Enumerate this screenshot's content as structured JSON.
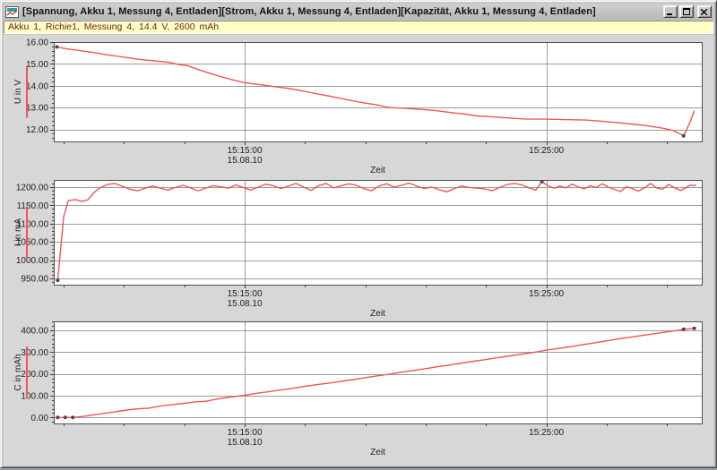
{
  "window": {
    "title": "[Spannung, Akku 1, Messung 4, Entladen][Strom, Akku 1, Messung 4, Entladen][Kapazität, Akku 1, Messung 4, Entladen]",
    "icon": "chart-document-icon",
    "buttons": [
      {
        "id": "minimize",
        "icon": "minimize-icon"
      },
      {
        "id": "maximize",
        "icon": "maximize-icon"
      },
      {
        "id": "close",
        "icon": "close-icon"
      }
    ]
  },
  "info_bar": {
    "text": "Akku 1, Richie1, Messung 4, 14.4 V, 2600 mAh"
  },
  "colors": {
    "accent_red": "#d94040",
    "line": "#ee5555",
    "grid": "#9b9b9b",
    "plot_border": "#4f4f4f",
    "plot_bg": "#ffffff",
    "marker": "#4a4a4a",
    "info_bg": "#ffffc4",
    "info_text": "#6e2020",
    "content_bg": "#d7d7d7"
  },
  "chart_data": [
    {
      "id": "spannung",
      "type": "line",
      "title": "Spannung, Akku 1, Messung 4, Entladen",
      "ylabel": "U in V",
      "xlabel": "Zeit",
      "x_unit": "minutes after 15:00:00 on 15.08.10",
      "xlim": [
        8.67,
        30.15
      ],
      "ylim": [
        11.45,
        16.0
      ],
      "yticks": [
        12,
        13,
        14,
        15,
        16
      ],
      "ytick_labels": [
        "12.00",
        "13.00",
        "14.00",
        "15.00",
        "16.00"
      ],
      "xticks": [
        {
          "t": 15,
          "label": "15:15:00",
          "date": "15.08.10"
        },
        {
          "t": 25,
          "label": "15:25:00"
        }
      ],
      "xminor": [
        9,
        11,
        13,
        17,
        19,
        21,
        23,
        27,
        29
      ],
      "legend_color": "#ee5555",
      "series": [
        {
          "name": "U",
          "points": [
            [
              8.77,
              15.78
            ],
            [
              9.1,
              15.69
            ],
            [
              9.5,
              15.62
            ],
            [
              10.0,
              15.52
            ],
            [
              10.5,
              15.4
            ],
            [
              11.0,
              15.31
            ],
            [
              11.5,
              15.21
            ],
            [
              12.0,
              15.14
            ],
            [
              12.5,
              15.07
            ],
            [
              12.8,
              14.97
            ],
            [
              13.1,
              14.92
            ],
            [
              13.5,
              14.72
            ],
            [
              14.1,
              14.46
            ],
            [
              14.6,
              14.27
            ],
            [
              15.0,
              14.14
            ],
            [
              15.5,
              14.05
            ],
            [
              16.0,
              13.96
            ],
            [
              16.5,
              13.87
            ],
            [
              17.0,
              13.74
            ],
            [
              17.4,
              13.63
            ],
            [
              17.9,
              13.5
            ],
            [
              18.4,
              13.36
            ],
            [
              18.9,
              13.23
            ],
            [
              19.4,
              13.12
            ],
            [
              19.8,
              13.0
            ],
            [
              20.3,
              12.97
            ],
            [
              20.8,
              12.92
            ],
            [
              21.3,
              12.87
            ],
            [
              21.8,
              12.78
            ],
            [
              22.3,
              12.7
            ],
            [
              22.7,
              12.62
            ],
            [
              23.3,
              12.57
            ],
            [
              23.8,
              12.52
            ],
            [
              24.3,
              12.48
            ],
            [
              25.0,
              12.47
            ],
            [
              25.6,
              12.45
            ],
            [
              26.3,
              12.43
            ],
            [
              26.8,
              12.38
            ],
            [
              27.3,
              12.32
            ],
            [
              27.8,
              12.25
            ],
            [
              28.3,
              12.18
            ],
            [
              28.9,
              12.05
            ],
            [
              29.2,
              11.95
            ],
            [
              29.45,
              11.78
            ],
            [
              29.55,
              11.71
            ],
            [
              29.75,
              12.3
            ],
            [
              29.9,
              12.84
            ]
          ]
        }
      ],
      "markers": [
        [
          8.77,
          15.78
        ],
        [
          29.55,
          11.71
        ]
      ]
    },
    {
      "id": "strom",
      "type": "line",
      "title": "Strom, Akku 1, Messung 4, Entladen",
      "ylabel": "I in mA",
      "xlabel": "Zeit",
      "x_unit": "minutes after 15:00:00 on 15.08.10",
      "xlim": [
        8.67,
        30.15
      ],
      "ylim": [
        933,
        1219.6
      ],
      "yticks": [
        950,
        1000,
        1050,
        1100,
        1150,
        1200
      ],
      "ytick_labels": [
        "950.00",
        "1000.00",
        "1050.00",
        "1100.00",
        "1150.00",
        "1200.00"
      ],
      "xticks": [
        {
          "t": 15,
          "label": "15:15:00",
          "date": "15.08.10"
        },
        {
          "t": 25,
          "label": "15:25:00"
        }
      ],
      "xminor": [
        9,
        11,
        13,
        17,
        19,
        21,
        23,
        27,
        29
      ],
      "legend_color": "#ee5555",
      "series": [
        {
          "name": "I",
          "points": [
            [
              8.8,
              945
            ],
            [
              9.0,
              1120
            ],
            [
              9.15,
              1163
            ],
            [
              9.4,
              1166
            ],
            [
              9.6,
              1161
            ],
            [
              9.8,
              1165
            ],
            [
              10.0,
              1185
            ],
            [
              10.2,
              1198
            ],
            [
              10.45,
              1207
            ],
            [
              10.7,
              1210
            ],
            [
              10.95,
              1202
            ],
            [
              11.2,
              1194
            ],
            [
              11.45,
              1190
            ],
            [
              11.7,
              1197
            ],
            [
              11.95,
              1203
            ],
            [
              12.2,
              1197
            ],
            [
              12.45,
              1192
            ],
            [
              12.7,
              1199
            ],
            [
              12.95,
              1205
            ],
            [
              13.2,
              1198
            ],
            [
              13.45,
              1190
            ],
            [
              13.7,
              1197
            ],
            [
              13.95,
              1204
            ],
            [
              14.2,
              1201
            ],
            [
              14.45,
              1197
            ],
            [
              14.7,
              1206
            ],
            [
              14.95,
              1199
            ],
            [
              15.2,
              1192
            ],
            [
              15.45,
              1200
            ],
            [
              15.7,
              1208
            ],
            [
              15.95,
              1204
            ],
            [
              16.2,
              1196
            ],
            [
              16.45,
              1203
            ],
            [
              16.7,
              1210
            ],
            [
              16.95,
              1200
            ],
            [
              17.2,
              1191
            ],
            [
              17.45,
              1204
            ],
            [
              17.7,
              1210
            ],
            [
              17.95,
              1198
            ],
            [
              18.2,
              1204
            ],
            [
              18.45,
              1209
            ],
            [
              18.7,
              1205
            ],
            [
              18.95,
              1196
            ],
            [
              19.2,
              1190
            ],
            [
              19.45,
              1203
            ],
            [
              19.7,
              1209
            ],
            [
              19.95,
              1200
            ],
            [
              20.2,
              1205
            ],
            [
              20.45,
              1211
            ],
            [
              20.7,
              1203
            ],
            [
              20.95,
              1196
            ],
            [
              21.2,
              1200
            ],
            [
              21.45,
              1193
            ],
            [
              21.7,
              1187
            ],
            [
              21.95,
              1196
            ],
            [
              22.2,
              1203
            ],
            [
              22.45,
              1199
            ],
            [
              22.7,
              1197
            ],
            [
              22.95,
              1195
            ],
            [
              23.2,
              1190
            ],
            [
              23.45,
              1199
            ],
            [
              23.7,
              1207
            ],
            [
              23.95,
              1210
            ],
            [
              24.2,
              1206
            ],
            [
              24.45,
              1197
            ],
            [
              24.65,
              1192
            ],
            [
              24.85,
              1215
            ],
            [
              25.05,
              1204
            ],
            [
              25.25,
              1197
            ],
            [
              25.45,
              1203
            ],
            [
              25.65,
              1198
            ],
            [
              25.85,
              1208
            ],
            [
              26.05,
              1201
            ],
            [
              26.25,
              1195
            ],
            [
              26.45,
              1204
            ],
            [
              26.65,
              1199
            ],
            [
              26.85,
              1209
            ],
            [
              27.05,
              1200
            ],
            [
              27.25,
              1194
            ],
            [
              27.45,
              1188
            ],
            [
              27.65,
              1201
            ],
            [
              27.85,
              1196
            ],
            [
              28.05,
              1189
            ],
            [
              28.25,
              1198
            ],
            [
              28.45,
              1210
            ],
            [
              28.65,
              1198
            ],
            [
              28.85,
              1194
            ],
            [
              29.05,
              1207
            ],
            [
              29.25,
              1198
            ],
            [
              29.45,
              1191
            ],
            [
              29.6,
              1197
            ],
            [
              29.75,
              1205
            ],
            [
              29.95,
              1205
            ]
          ]
        }
      ],
      "markers": [
        [
          8.8,
          945
        ],
        [
          24.85,
          1215
        ]
      ]
    },
    {
      "id": "kapazitaet",
      "type": "line",
      "title": "Kapazität, Akku 1, Messung 4, Entladen",
      "ylabel": "C in mAh",
      "xlabel": "Zeit",
      "x_unit": "minutes after 15:00:00 on 15.08.10",
      "xlim": [
        8.67,
        30.15
      ],
      "ylim": [
        -27.6,
        441.2
      ],
      "yticks": [
        0,
        100,
        200,
        300,
        400
      ],
      "ytick_labels": [
        "0.00",
        "100.00",
        "200.00",
        "300.00",
        "400.00"
      ],
      "xticks": [
        {
          "t": 15,
          "label": "15:15:00",
          "date": "15.08.10"
        },
        {
          "t": 25,
          "label": "15:25:00"
        }
      ],
      "xminor": [
        9,
        11,
        13,
        17,
        19,
        21,
        23,
        27,
        29
      ],
      "legend_color": "#ee5555",
      "series": [
        {
          "name": "C",
          "points": [
            [
              8.8,
              0
            ],
            [
              9.05,
              0
            ],
            [
              9.3,
              0
            ],
            [
              9.6,
              4
            ],
            [
              10.0,
              12
            ],
            [
              10.4,
              20
            ],
            [
              10.8,
              28
            ],
            [
              11.2,
              36
            ],
            [
              11.6,
              41
            ],
            [
              11.8,
              42
            ],
            [
              12.2,
              52
            ],
            [
              12.6,
              59
            ],
            [
              13.0,
              65
            ],
            [
              13.4,
              72
            ],
            [
              13.7,
              74
            ],
            [
              14.1,
              85
            ],
            [
              14.5,
              93
            ],
            [
              15.0,
              102
            ],
            [
              15.4,
              111
            ],
            [
              15.8,
              119
            ],
            [
              16.2,
              126
            ],
            [
              16.6,
              134
            ],
            [
              17.0,
              143
            ],
            [
              17.4,
              151
            ],
            [
              17.8,
              158
            ],
            [
              18.2,
              166
            ],
            [
              18.6,
              174
            ],
            [
              19.0,
              183
            ],
            [
              19.4,
              191
            ],
            [
              19.8,
              199
            ],
            [
              20.2,
              208
            ],
            [
              20.6,
              216
            ],
            [
              21.0,
              224
            ],
            [
              21.4,
              233
            ],
            [
              21.8,
              241
            ],
            [
              22.2,
              250
            ],
            [
              22.6,
              258
            ],
            [
              23.0,
              266
            ],
            [
              23.4,
              275
            ],
            [
              23.8,
              283
            ],
            [
              24.2,
              291
            ],
            [
              24.6,
              299
            ],
            [
              25.0,
              309
            ],
            [
              25.4,
              317
            ],
            [
              25.8,
              325
            ],
            [
              26.2,
              334
            ],
            [
              26.6,
              343
            ],
            [
              27.0,
              352
            ],
            [
              27.4,
              361
            ],
            [
              27.8,
              369
            ],
            [
              28.2,
              377
            ],
            [
              28.6,
              385
            ],
            [
              29.0,
              393
            ],
            [
              29.3,
              399
            ],
            [
              29.55,
              405
            ],
            [
              29.9,
              409
            ]
          ]
        }
      ],
      "markers": [
        [
          8.8,
          0
        ],
        [
          9.05,
          0
        ],
        [
          9.3,
          0
        ],
        [
          29.55,
          405
        ],
        [
          29.9,
          409
        ]
      ]
    }
  ]
}
